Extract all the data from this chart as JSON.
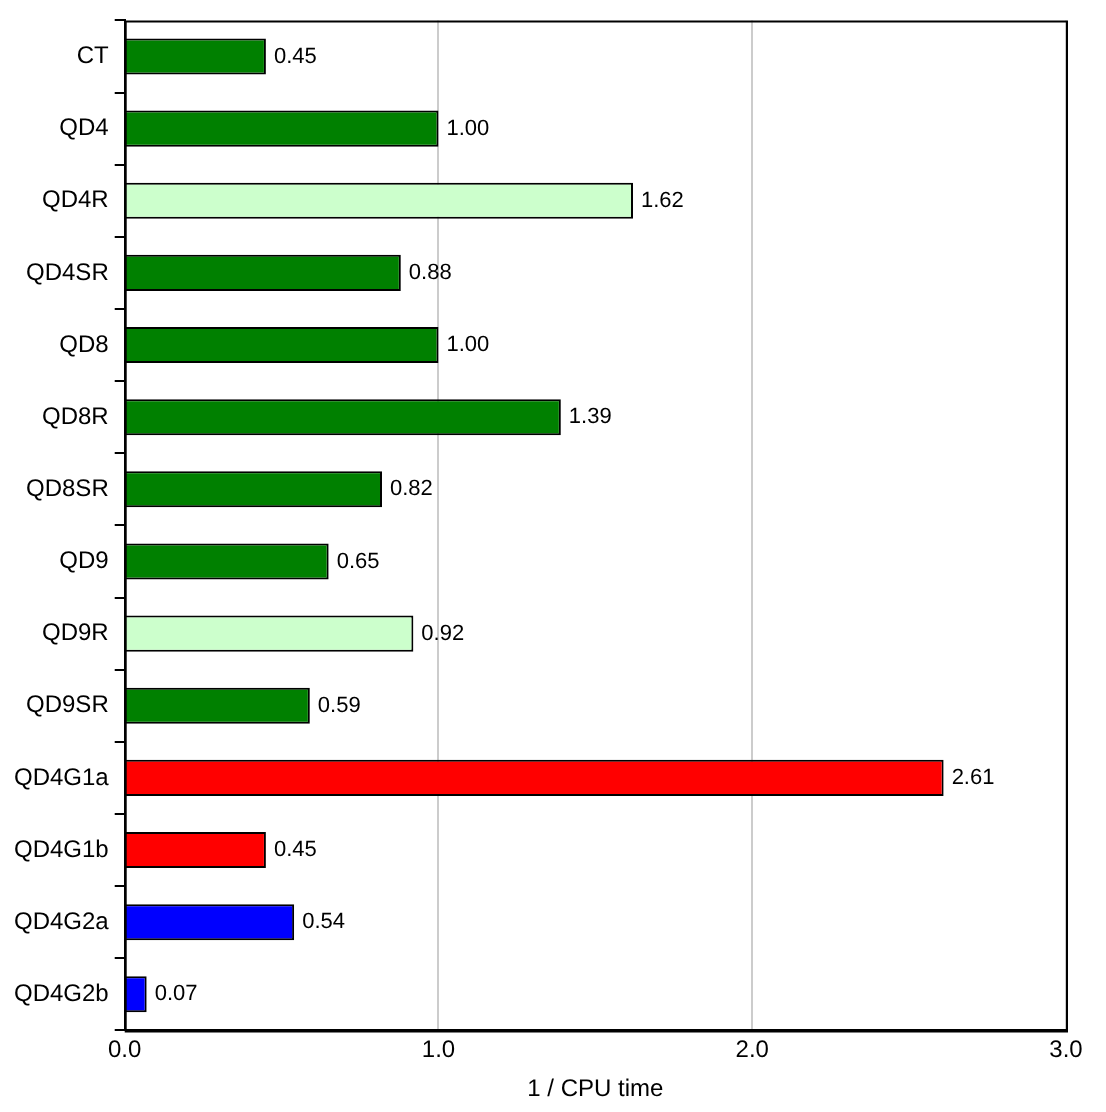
{
  "chart_data": {
    "type": "bar",
    "orientation": "horizontal",
    "xlabel": "1 / CPU time",
    "categories": [
      "CT",
      "QD4",
      "QD4R",
      "QD4SR",
      "QD8",
      "QD8R",
      "QD8SR",
      "QD9",
      "QD9R",
      "QD9SR",
      "QD4G1a",
      "QD4G1b",
      "QD4G2a",
      "QD4G2b"
    ],
    "values": [
      0.45,
      1.0,
      1.62,
      0.88,
      1.0,
      1.39,
      0.82,
      0.65,
      0.92,
      0.59,
      2.61,
      0.45,
      0.54,
      0.07
    ],
    "value_labels": [
      "0.45",
      "1.00",
      "1.62",
      "0.88",
      "1.00",
      "1.39",
      "0.82",
      "0.65",
      "0.92",
      "0.59",
      "2.61",
      "0.45",
      "0.54",
      "0.07"
    ],
    "colors": [
      "#008000",
      "#008000",
      "#ccffcc",
      "#008000",
      "#008000",
      "#008000",
      "#008000",
      "#008000",
      "#ccffcc",
      "#008000",
      "#ff0000",
      "#ff0000",
      "#0000ff",
      "#0000ff"
    ],
    "xlim": [
      0,
      3
    ],
    "xticks": [
      {
        "value": 0,
        "label": "0.0"
      },
      {
        "value": 1,
        "label": "1.0"
      },
      {
        "value": 2,
        "label": "2.0"
      },
      {
        "value": 3,
        "label": "3.0"
      }
    ],
    "grid": "x",
    "legend": false
  }
}
